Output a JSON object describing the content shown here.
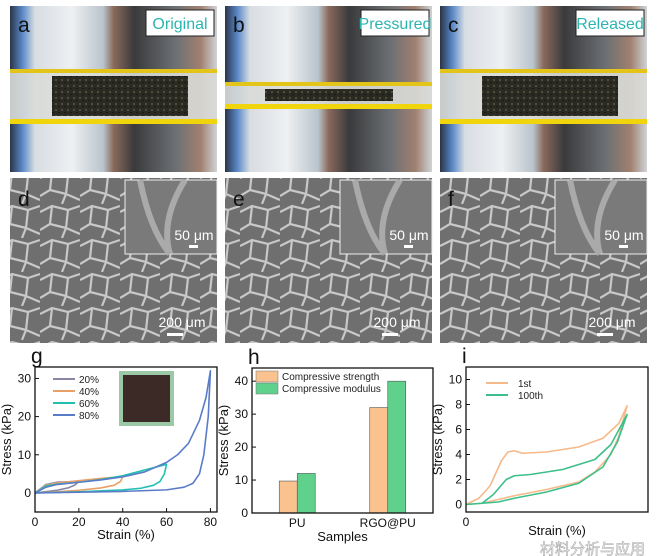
{
  "photos": [
    {
      "panel": "a",
      "state": "Original"
    },
    {
      "panel": "b",
      "state": "Pressured"
    },
    {
      "panel": "c",
      "state": "Released"
    }
  ],
  "sem": [
    {
      "panel": "d",
      "inset_scale": "50 μm",
      "main_scale": "200 μm"
    },
    {
      "panel": "e",
      "inset_scale": "50 μm",
      "main_scale": "200 μm"
    },
    {
      "panel": "f",
      "inset_scale": "50 μm",
      "main_scale": "200 μm"
    }
  ],
  "watermark": "材料分析与应用",
  "chart_data": [
    {
      "panel": "g",
      "type": "line",
      "xlabel": "Strain (%)",
      "ylabel": "Stress (kPa)",
      "xlim": [
        0,
        83
      ],
      "ylim": [
        -5,
        33
      ],
      "xticks": [
        0,
        20,
        40,
        60,
        80
      ],
      "yticks": [
        0,
        10,
        20,
        30
      ],
      "legend": "top-left",
      "inset": "foam sample photo",
      "series": [
        {
          "name": "20%",
          "color": "#8a86a6",
          "points": [
            [
              0,
              0
            ],
            [
              5,
              2.2
            ],
            [
              10,
              2.8
            ],
            [
              20,
              3
            ],
            [
              18,
              2
            ],
            [
              15,
              1.3
            ],
            [
              10,
              0.7
            ],
            [
              0,
              0
            ]
          ]
        },
        {
          "name": "40%",
          "color": "#e8a066",
          "points": [
            [
              0,
              0
            ],
            [
              5,
              2
            ],
            [
              10,
              2.6
            ],
            [
              20,
              3.2
            ],
            [
              30,
              3.8
            ],
            [
              40,
              4.3
            ],
            [
              39,
              3
            ],
            [
              36,
              2
            ],
            [
              30,
              1.3
            ],
            [
              20,
              0.7
            ],
            [
              10,
              0.3
            ],
            [
              0,
              0
            ]
          ]
        },
        {
          "name": "60%",
          "color": "#22c0b0",
          "points": [
            [
              0,
              0
            ],
            [
              5,
              1.8
            ],
            [
              10,
              2.3
            ],
            [
              20,
              2.8
            ],
            [
              30,
              3.5
            ],
            [
              40,
              4.5
            ],
            [
              50,
              6
            ],
            [
              60,
              7.5
            ],
            [
              59,
              5
            ],
            [
              57,
              3
            ],
            [
              54,
              2
            ],
            [
              48,
              1.2
            ],
            [
              40,
              0.8
            ],
            [
              20,
              0.3
            ],
            [
              0,
              0
            ]
          ]
        },
        {
          "name": "80%",
          "color": "#5a7cc8",
          "points": [
            [
              0,
              0
            ],
            [
              5,
              1.5
            ],
            [
              10,
              2.2
            ],
            [
              20,
              2.8
            ],
            [
              30,
              3.4
            ],
            [
              40,
              4.2
            ],
            [
              50,
              5.5
            ],
            [
              60,
              8
            ],
            [
              65,
              10
            ],
            [
              70,
              13
            ],
            [
              75,
              19
            ],
            [
              78,
              25
            ],
            [
              80,
              32
            ],
            [
              79,
              20
            ],
            [
              77,
              10
            ],
            [
              75,
              5
            ],
            [
              72,
              2.5
            ],
            [
              68,
              1.5
            ],
            [
              60,
              0.8
            ],
            [
              40,
              0.4
            ],
            [
              20,
              0.2
            ],
            [
              0,
              0
            ]
          ]
        }
      ]
    },
    {
      "panel": "h",
      "type": "bar",
      "xlabel": "Samples",
      "ylabel": "Stress (kPa)",
      "ylim": [
        0,
        44
      ],
      "yticks": [
        0,
        10,
        20,
        30,
        40
      ],
      "legend": "top-left",
      "categories": [
        "PU",
        "RGO@PU"
      ],
      "series": [
        {
          "name": "Compressive strength",
          "color": "#f9c28f",
          "values": [
            9.7,
            32
          ]
        },
        {
          "name": "Compressive modulus",
          "color": "#5fd18c",
          "values": [
            12,
            40
          ]
        }
      ]
    },
    {
      "panel": "i",
      "type": "line",
      "xlabel": "Strain (%)",
      "ylabel": "Stress (kPa)",
      "xlim": [
        0,
        11.3
      ],
      "ylim": [
        -0.6,
        11
      ],
      "xticks": [
        0
      ],
      "yticks": [
        0,
        2,
        4,
        6,
        8,
        10
      ],
      "legend": "top-left",
      "series": [
        {
          "name": "1st",
          "color": "#f5b98a",
          "points": [
            [
              0,
              0
            ],
            [
              0.8,
              0.5
            ],
            [
              1.5,
              1.5
            ],
            [
              2.2,
              3.5
            ],
            [
              2.6,
              4.2
            ],
            [
              3,
              4.3
            ],
            [
              3.5,
              4.1
            ],
            [
              5,
              4.2
            ],
            [
              7,
              4.6
            ],
            [
              8.5,
              5.3
            ],
            [
              9.5,
              6.5
            ],
            [
              10,
              7.9
            ],
            [
              9.5,
              5.5
            ],
            [
              9,
              4
            ],
            [
              8,
              2.6
            ],
            [
              7,
              1.8
            ],
            [
              5,
              1.2
            ],
            [
              3,
              0.7
            ],
            [
              2,
              0.4
            ],
            [
              1,
              0.1
            ],
            [
              0,
              0
            ]
          ]
        },
        {
          "name": "100th",
          "color": "#3cbf8a",
          "points": [
            [
              0,
              0
            ],
            [
              1,
              0.1
            ],
            [
              1.7,
              0.8
            ],
            [
              2.5,
              2
            ],
            [
              3,
              2.3
            ],
            [
              4,
              2.4
            ],
            [
              6,
              2.8
            ],
            [
              8,
              3.6
            ],
            [
              9,
              4.8
            ],
            [
              10,
              7.2
            ],
            [
              9.4,
              5
            ],
            [
              8.5,
              3
            ],
            [
              7,
              1.7
            ],
            [
              5,
              1
            ],
            [
              3,
              0.5
            ],
            [
              2,
              0.2
            ],
            [
              0,
              0
            ]
          ]
        }
      ]
    }
  ]
}
